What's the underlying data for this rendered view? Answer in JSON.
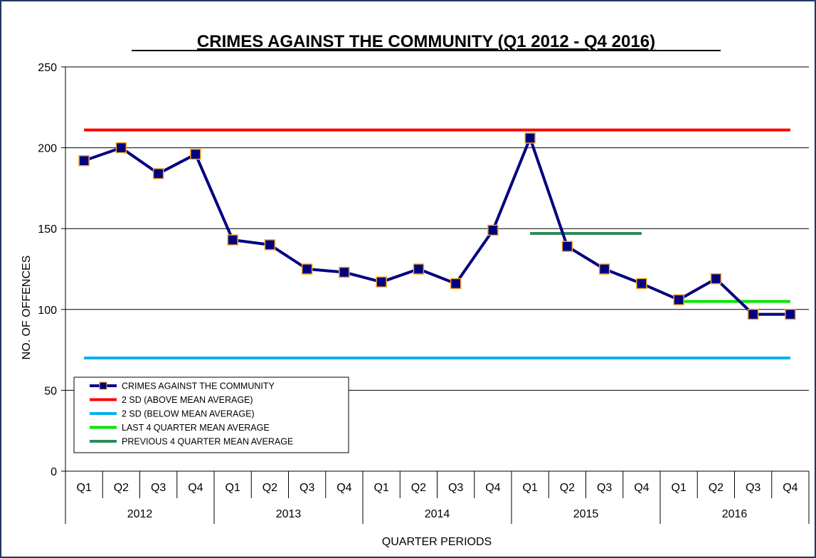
{
  "chart_data": {
    "type": "line",
    "title": "CRIMES AGAINST THE COMMUNITY (Q1 2012 - Q4 2016)",
    "xlabel": "QUARTER PERIODS",
    "ylabel": "NO. OF OFFENCES",
    "ylim": [
      0,
      250
    ],
    "yticks": [
      0,
      50,
      100,
      150,
      200,
      250
    ],
    "grid": true,
    "legend_position": "bottom-left",
    "years": [
      "2012",
      "2013",
      "2014",
      "2015",
      "2016"
    ],
    "quarters": [
      "Q1",
      "Q2",
      "Q3",
      "Q4"
    ],
    "categories": [
      "Q1",
      "Q2",
      "Q3",
      "Q4",
      "Q1",
      "Q2",
      "Q3",
      "Q4",
      "Q1",
      "Q2",
      "Q3",
      "Q4",
      "Q1",
      "Q2",
      "Q3",
      "Q4",
      "Q1",
      "Q2",
      "Q3",
      "Q4"
    ],
    "series": [
      {
        "name": "CRIMES AGAINST THE COMMUNITY",
        "color": "#000080",
        "values": [
          192,
          200,
          184,
          196,
          143,
          140,
          125,
          123,
          117,
          125,
          116,
          149,
          206,
          139,
          125,
          116,
          106,
          119,
          97,
          97
        ]
      },
      {
        "name": "2 SD (ABOVE MEAN AVERAGE)",
        "color": "#ff0000",
        "value": 211,
        "x_from": 0,
        "x_to": 19
      },
      {
        "name": "2 SD (BELOW MEAN AVERAGE)",
        "color": "#00b0f0",
        "value": 70,
        "x_from": 0,
        "x_to": 19
      },
      {
        "name": "LAST 4 QUARTER MEAN AVERAGE",
        "color": "#00e600",
        "value": 105,
        "x_from": 16,
        "x_to": 19
      },
      {
        "name": "PREVIOUS 4 QUARTER MEAN AVERAGE",
        "color": "#2e8b57",
        "value": 147,
        "x_from": 12,
        "x_to": 15
      }
    ]
  }
}
